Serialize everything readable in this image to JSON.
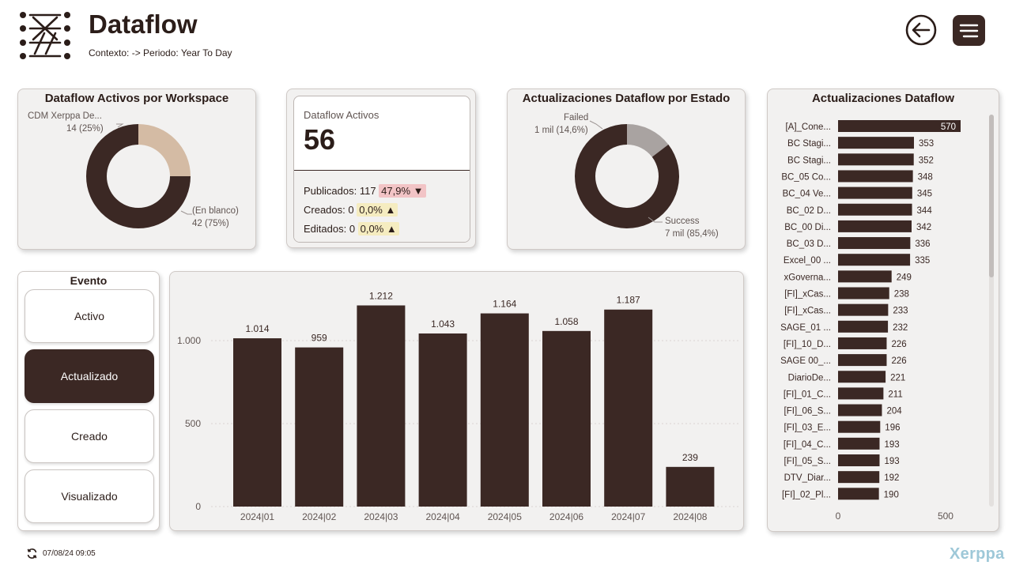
{
  "header": {
    "title": "Dataflow",
    "subtitle": "Contexto: -> Periodo: Year To Day",
    "logo_icon": "dataflow-logo-icon",
    "back_icon": "back-arrow-icon",
    "menu_icon": "hamburger-menu-icon"
  },
  "colors": {
    "brand_dark": "#3b2824",
    "tan": "#d4bba4",
    "grey_failed": "#a9a3a1",
    "red_chip": "#f2c4c6",
    "yellow_chip": "#f5ecc0"
  },
  "donut_workspace": {
    "title": "Dataflow Activos por Workspace",
    "label_a_name": "CDM Xerppa De...",
    "label_a_value": "14 (25%)",
    "label_b_name": "(En blanco)",
    "label_b_value": "42 (75%)"
  },
  "kpi": {
    "label": "Dataflow Activos",
    "value": "56",
    "publicados_text": "Publicados: 117",
    "publicados_pct": "47,9% ▼",
    "creados_text": "Creados: 0",
    "creados_pct": "0,0% ▲",
    "editados_text": "Editados: 0",
    "editados_pct": "0,0% ▲"
  },
  "donut_estado": {
    "title": "Actualizaciones Dataflow por Estado",
    "label_failed_name": "Failed",
    "label_failed_value": "1 mil (14,6%)",
    "label_success_name": "Success",
    "label_success_value": "7 mil (85,4%)"
  },
  "evento": {
    "title": "Evento",
    "items": [
      {
        "label": "Activo",
        "selected": false
      },
      {
        "label": "Actualizado",
        "selected": true
      },
      {
        "label": "Creado",
        "selected": false
      },
      {
        "label": "Visualizado",
        "selected": false
      }
    ]
  },
  "hbar_title": "Actualizaciones Dataflow",
  "footer": {
    "refresh_icon": "refresh-icon",
    "timestamp": "07/08/24 09:05",
    "brand": "Xerppa"
  },
  "chart_data": [
    {
      "type": "pie",
      "title": "Dataflow Activos por Workspace",
      "donut": true,
      "categories": [
        "CDM Xerppa De...",
        "(En blanco)"
      ],
      "values": [
        14,
        42
      ],
      "labels": [
        "14 (25%)",
        "42 (75%)"
      ],
      "colors": [
        "#d4bba4",
        "#3b2824"
      ]
    },
    {
      "type": "pie",
      "title": "Actualizaciones Dataflow por Estado",
      "donut": true,
      "categories": [
        "Failed",
        "Success"
      ],
      "values": [
        14.6,
        85.4
      ],
      "labels": [
        "1 mil (14,6%)",
        "7 mil (85,4%)"
      ],
      "colors": [
        "#a9a3a1",
        "#3b2824"
      ]
    },
    {
      "type": "bar",
      "orientation": "vertical",
      "categories": [
        "2024|01",
        "2024|02",
        "2024|03",
        "2024|04",
        "2024|05",
        "2024|06",
        "2024|07",
        "2024|08"
      ],
      "values": [
        1014,
        959,
        1212,
        1043,
        1164,
        1058,
        1187,
        239
      ],
      "value_labels": [
        "1.014",
        "959",
        "1.212",
        "1.043",
        "1.164",
        "1.058",
        "1.187",
        "239"
      ],
      "yticks": [
        0,
        500,
        1000
      ],
      "ytick_labels": [
        "0",
        "500",
        "1.000"
      ],
      "ylim": [
        0,
        1300
      ]
    },
    {
      "type": "bar",
      "orientation": "horizontal",
      "title": "Actualizaciones Dataflow",
      "categories": [
        "[A]_Cone...",
        "BC Stagi...",
        "BC Stagi...",
        "BC_05 Co...",
        "BC_04 Ve...",
        "BC_02 D...",
        "BC_00 Di...",
        "BC_03 D...",
        "Excel_00 ...",
        "xGoverna...",
        "[FI]_xCas...",
        "[FI]_xCas...",
        "SAGE_01 ...",
        "[FI]_10_D...",
        "SAGE 00_...",
        "DiarioDe...",
        "[FI]_01_C...",
        "[FI]_06_S...",
        "[FI]_03_E...",
        "[FI]_04_C...",
        "[FI]_05_S...",
        "DTV_Diar...",
        "[FI]_02_Pl..."
      ],
      "values": [
        570,
        353,
        352,
        348,
        345,
        344,
        342,
        336,
        335,
        249,
        238,
        233,
        232,
        226,
        226,
        221,
        211,
        204,
        196,
        193,
        193,
        192,
        190
      ],
      "xticks": [
        0,
        500
      ],
      "xlim": [
        0,
        570
      ]
    }
  ]
}
